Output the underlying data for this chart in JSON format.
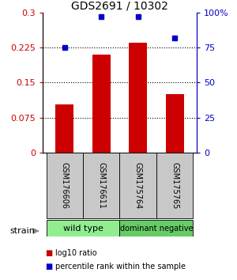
{
  "title": "GDS2691 / 10302",
  "samples": [
    "GSM176606",
    "GSM176611",
    "GSM175764",
    "GSM175765"
  ],
  "log10_ratios": [
    0.103,
    0.21,
    0.235,
    0.125
  ],
  "percentile_ranks": [
    75,
    97,
    97,
    82
  ],
  "bar_color": "#cc0000",
  "dot_color": "#0000cc",
  "ylim_left": [
    0,
    0.3
  ],
  "ylim_right": [
    0,
    100
  ],
  "yticks_left": [
    0,
    0.075,
    0.15,
    0.225,
    0.3
  ],
  "ytick_labels_left": [
    "0",
    "0.075",
    "0.15",
    "0.225",
    "0.3"
  ],
  "yticks_right": [
    0,
    25,
    50,
    75,
    100
  ],
  "ytick_labels_right": [
    "0",
    "25",
    "50",
    "75",
    "100%"
  ],
  "dotted_lines": [
    0.075,
    0.15,
    0.225
  ],
  "groups": [
    {
      "label": "wild type",
      "indices": [
        0,
        1
      ],
      "color": "#90ee90"
    },
    {
      "label": "dominant negative",
      "indices": [
        2,
        3
      ],
      "color": "#66cc66"
    }
  ],
  "group_box_color": "#c8c8c8",
  "legend_red_label": "log10 ratio",
  "legend_blue_label": "percentile rank within the sample",
  "strain_label": "strain",
  "bar_width": 0.5,
  "title_fontsize": 10,
  "tick_fontsize": 8,
  "sample_fontsize": 7,
  "group_fontsize_wt": 8,
  "group_fontsize_dn": 7,
  "legend_fontsize": 7
}
